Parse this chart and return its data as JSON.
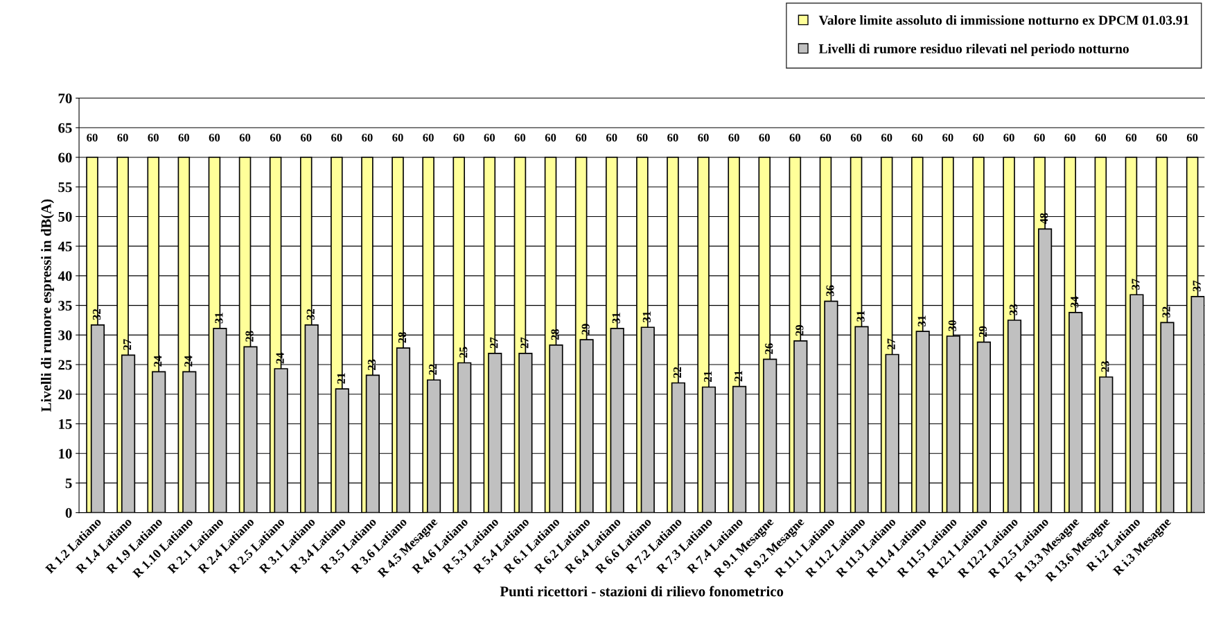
{
  "chart_data": {
    "type": "bar",
    "xlabel": "Punti ricettori - stazioni di rilievo fonometrico",
    "ylabel": "Livelli di rumore espressi in dB(A)",
    "categories": [
      "R 1.2 Latiano",
      "R 1.4 Latiano",
      "R 1.9 Latiano",
      "R 1.10 Latiano",
      "R 2.1 Latiano",
      "R 2.4 Latiano",
      "R 2.5 Latiano",
      "R 3.1 Latiano",
      "R 3.4 Latiano",
      "R 3.5 Latiano",
      "R 3.6 Latiano",
      "R 4.5 Mesagne",
      "R 4.6 Latiano",
      "R 5.3 Latiano",
      "R 5.4 Latiano",
      "R 6.1 Latiano",
      "R 6.2 Latiano",
      "R 6.4 Latiano",
      "R 6.6 Latiano",
      "R 7.2 Latiano",
      "R 7.3 Latiano",
      "R 7.4 Latiano",
      "R 9.1 Mesagne",
      "R 9.2 Mesagne",
      "R 11.1 Latiano",
      "R 11.2 Latiano",
      "R 11.3 Latiano",
      "R 11.4 Latiano",
      "R 11.5 Latiano",
      "R 12.1 Latiano",
      "R 12.2 Latiano",
      "R 12.5 Latiano",
      "R 13.3 Mesagne",
      "R 13.6 Mesagne",
      "R i.2 Latiano",
      "R i.3 Mesagne",
      null
    ],
    "series": [
      {
        "name": "Valore limite assoluto di immissione notturno ex DPCM 01.03.91",
        "color": "#ffff99",
        "values": [
          60,
          60,
          60,
          60,
          60,
          60,
          60,
          60,
          60,
          60,
          60,
          60,
          60,
          60,
          60,
          60,
          60,
          60,
          60,
          60,
          60,
          60,
          60,
          60,
          60,
          60,
          60,
          60,
          60,
          60,
          60,
          60,
          60,
          60,
          60,
          60,
          60
        ],
        "value_labels": [
          "60",
          "60",
          "60",
          "60",
          "60",
          "60",
          "60",
          "60",
          "60",
          "60",
          "60",
          "60",
          "60",
          "60",
          "60",
          "60",
          "60",
          "60",
          "60",
          "60",
          "60",
          "60",
          "60",
          "60",
          "60",
          "60",
          "60",
          "60",
          "60",
          "60",
          "60",
          "60",
          "60",
          "60",
          "60",
          "60",
          "60"
        ]
      },
      {
        "name": "Livelli di rumore residuo rilevati nel periodo notturno",
        "color": "#c0c0c0",
        "values": [
          31.7,
          26.6,
          23.8,
          23.8,
          31.1,
          28.0,
          24.3,
          31.7,
          20.9,
          23.2,
          27.8,
          22.4,
          25.3,
          26.9,
          26.9,
          28.3,
          29.2,
          31.1,
          31.3,
          21.9,
          21.2,
          21.3,
          25.9,
          29.0,
          35.7,
          31.4,
          26.7,
          30.6,
          29.8,
          28.8,
          32.5,
          47.9,
          33.8,
          22.9,
          36.8,
          32.1,
          36.5
        ],
        "value_labels": [
          "32",
          "27",
          "24",
          "24",
          "31",
          "28",
          "24",
          "32",
          "21",
          "23",
          "28",
          "22",
          "25",
          "27",
          "27",
          "28",
          "29",
          "31",
          "31",
          "22",
          "21",
          "21",
          "26",
          "29",
          "36",
          "31",
          "27",
          "31",
          "30",
          "29",
          "33",
          "48",
          "34",
          "23",
          "37",
          "32",
          "37"
        ]
      }
    ],
    "ylim": [
      0,
      70
    ],
    "yticks": [
      0,
      5,
      10,
      15,
      20,
      25,
      30,
      35,
      40,
      45,
      50,
      55,
      60,
      65,
      70
    ],
    "grid": "y",
    "legend": "top right"
  }
}
